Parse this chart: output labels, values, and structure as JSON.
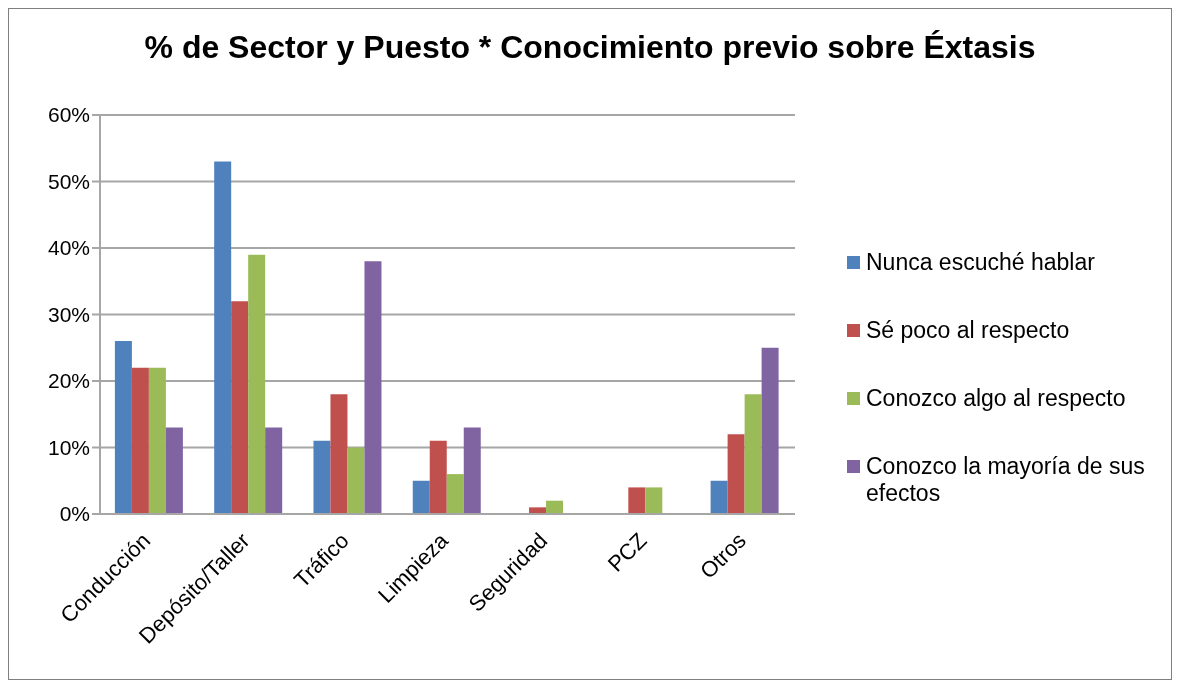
{
  "chart_data": {
    "type": "bar",
    "title": "% de Sector y Puesto * Conocimiento previo sobre Éxtasis",
    "categories": [
      "Conducción",
      "Depósito/Taller",
      "Tráfico",
      "Limpieza",
      "Seguridad",
      "PCZ",
      "Otros"
    ],
    "series": [
      {
        "name": "Nunca escuché hablar",
        "color": "#4f81bd",
        "values": [
          26,
          53,
          11,
          5,
          0,
          0,
          5
        ]
      },
      {
        "name": "Sé poco al respecto",
        "color": "#c0504d",
        "values": [
          22,
          32,
          18,
          11,
          1,
          4,
          12
        ]
      },
      {
        "name": "Conozco algo al respecto",
        "color": "#9bbb59",
        "values": [
          22,
          39,
          10,
          6,
          2,
          4,
          18
        ]
      },
      {
        "name": "Conozco la mayoría de sus efectos",
        "color": "#8064a2",
        "values": [
          13,
          13,
          38,
          13,
          0,
          0,
          25
        ]
      }
    ],
    "ylim": [
      0,
      60
    ],
    "yticks": [
      {
        "value": 0,
        "label": "0%"
      },
      {
        "value": 10,
        "label": "10%"
      },
      {
        "value": 20,
        "label": "20%"
      },
      {
        "value": 30,
        "label": "30%"
      },
      {
        "value": 40,
        "label": "40%"
      },
      {
        "value": 50,
        "label": "50%"
      },
      {
        "value": 60,
        "label": "60%"
      }
    ],
    "grid": "y",
    "legend": "right"
  }
}
